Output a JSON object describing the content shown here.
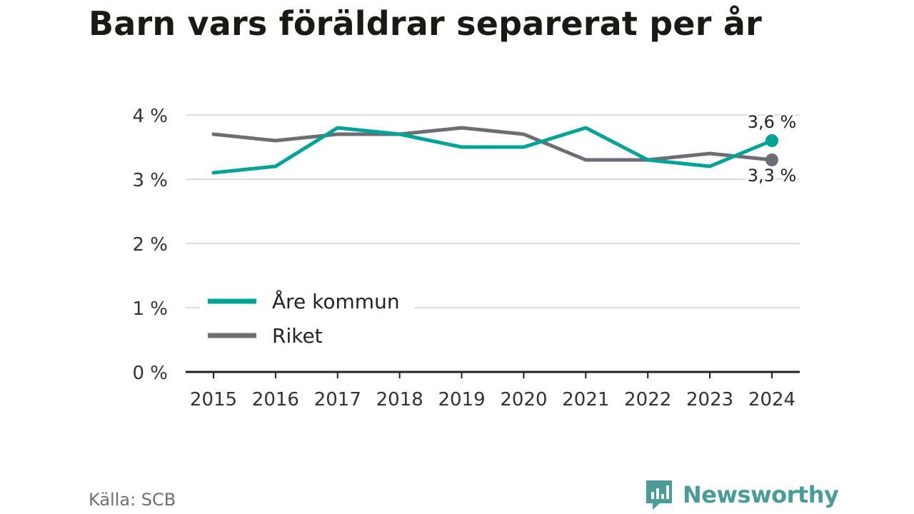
{
  "chart_data": {
    "type": "line",
    "title": "Barn vars föräldrar separerat per år",
    "x": [
      "2015",
      "2016",
      "2017",
      "2018",
      "2019",
      "2020",
      "2021",
      "2022",
      "2023",
      "2024"
    ],
    "series": [
      {
        "name": "Åre kommun",
        "color": "#00a398",
        "values": [
          3.1,
          3.2,
          3.8,
          3.7,
          3.5,
          3.5,
          3.8,
          3.3,
          3.2,
          3.6
        ],
        "end_label": "3,6 %"
      },
      {
        "name": "Riket",
        "color": "#6d6e73",
        "values": [
          3.7,
          3.6,
          3.7,
          3.7,
          3.8,
          3.7,
          3.3,
          3.3,
          3.4,
          3.3
        ],
        "end_label": "3,3 %"
      }
    ],
    "ylim": [
      0,
      4
    ],
    "yticks": [
      0,
      1,
      2,
      3,
      4
    ],
    "ytick_labels": [
      "0 %",
      "1 %",
      "2 %",
      "3 %",
      "4 %"
    ],
    "grid": true,
    "legend_position": "bottom-left",
    "xlabel": "",
    "ylabel": ""
  },
  "footer": {
    "source": "Källa: SCB",
    "brand": "Newsworthy"
  },
  "colors": {
    "accent": "#00a398",
    "national": "#6d6e73",
    "brand": "#4a9c98"
  }
}
